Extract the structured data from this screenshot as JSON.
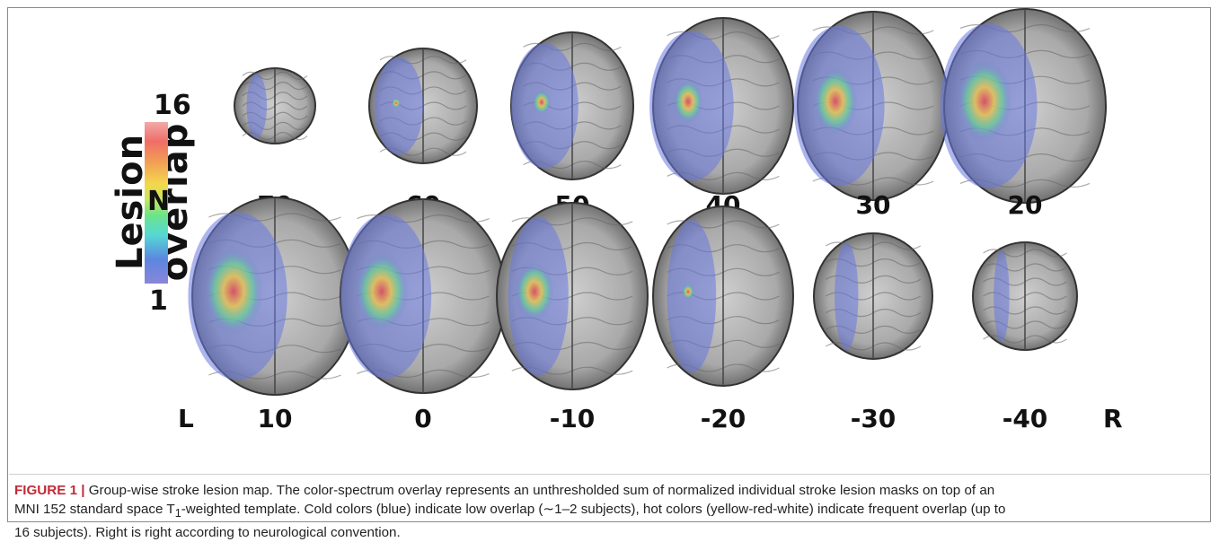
{
  "figure": {
    "legend": {
      "title": "Lesion overlap",
      "max_label": "16",
      "mid_label": "N",
      "min_label": "1"
    },
    "slices_top": [
      {
        "z": "70",
        "lesion": 0.25,
        "hot": 0.0
      },
      {
        "z": "60",
        "lesion": 0.45,
        "hot": 0.05
      },
      {
        "z": "50",
        "lesion": 0.55,
        "hot": 0.25
      },
      {
        "z": "40",
        "lesion": 0.6,
        "hot": 0.45
      },
      {
        "z": "30",
        "lesion": 0.6,
        "hot": 0.7
      },
      {
        "z": "20",
        "lesion": 0.6,
        "hot": 0.85
      }
    ],
    "slices_bottom": [
      {
        "z": "10",
        "lesion": 0.6,
        "hot": 0.9
      },
      {
        "z": "0",
        "lesion": 0.55,
        "hot": 0.8
      },
      {
        "z": "-10",
        "lesion": 0.4,
        "hot": 0.6
      },
      {
        "z": "-20",
        "lesion": 0.35,
        "hot": 0.1
      },
      {
        "z": "-30",
        "lesion": 0.2,
        "hot": 0.0
      },
      {
        "z": "-40",
        "lesion": 0.15,
        "hot": 0.0
      }
    ],
    "left_marker": "L",
    "right_marker": "R"
  },
  "caption": {
    "label": "FIGURE 1 |",
    "line1": " Group-wise stroke lesion map. The color-spectrum overlay represents an unthresholded sum of normalized individual stroke lesion masks on top of an",
    "line2a": "MNI 152 standard space T",
    "line2sub": "1",
    "line2b": "-weighted template. Cold colors (blue) indicate low overlap (∼1–2 subjects), hot colors (yellow-red-white) indicate frequent overlap (up to",
    "line3": "16 subjects). Right is right according to neurological convention."
  }
}
